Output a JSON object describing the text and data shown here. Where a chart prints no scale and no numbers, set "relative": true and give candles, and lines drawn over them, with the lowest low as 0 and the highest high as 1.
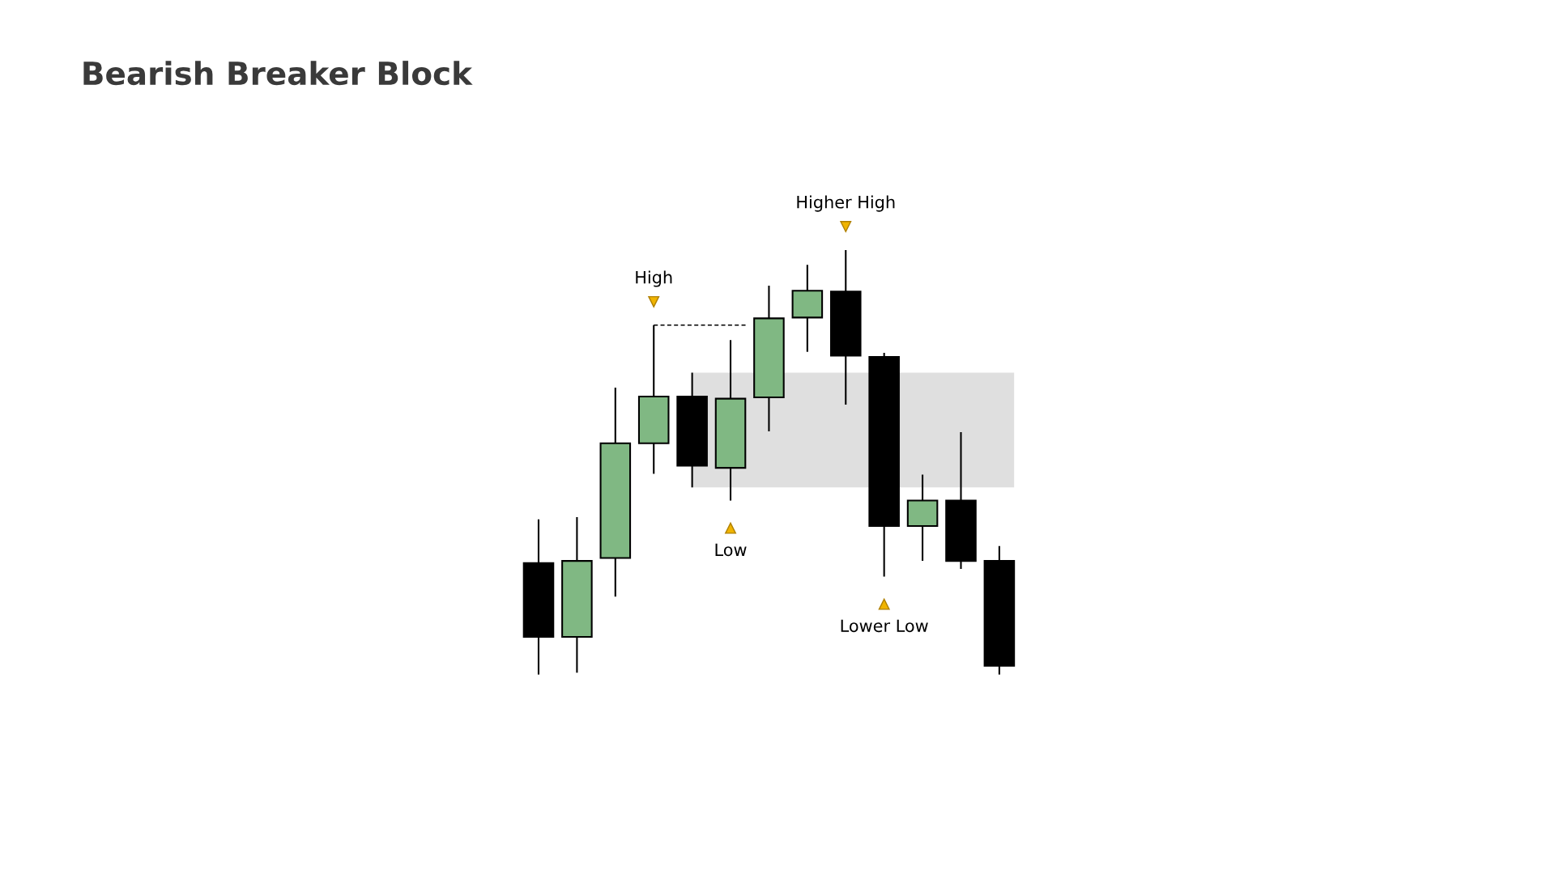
{
  "chart_data": {
    "type": "candlestick",
    "title": "Bearish Breaker Block",
    "relative": true,
    "categories": [
      null,
      null,
      null,
      null,
      null,
      null,
      null,
      null,
      null,
      null,
      null,
      null,
      null
    ],
    "ohlc": [
      [
        0.263,
        0.366,
        0.0,
        0.089
      ],
      [
        0.089,
        0.371,
        0.005,
        0.268
      ],
      [
        0.275,
        0.676,
        0.184,
        0.545
      ],
      [
        0.545,
        0.823,
        0.473,
        0.655
      ],
      [
        0.655,
        0.711,
        0.441,
        0.492
      ],
      [
        0.487,
        0.788,
        0.41,
        0.65
      ],
      [
        0.653,
        0.916,
        0.573,
        0.839
      ],
      [
        0.841,
        0.965,
        0.76,
        0.904
      ],
      [
        0.902,
        1.0,
        0.636,
        0.751
      ],
      [
        0.748,
        0.758,
        0.231,
        0.35
      ],
      [
        0.35,
        0.471,
        0.268,
        0.41
      ],
      [
        0.41,
        0.571,
        0.249,
        0.268
      ],
      [
        0.268,
        0.303,
        0.0,
        0.021
      ]
    ],
    "colors": [
      "#000000",
      "#80b883",
      "#80b883",
      "#80b883",
      "#000000",
      "#80b883",
      "#80b883",
      "#80b883",
      "#000000",
      "#000000",
      "#80b883",
      "#000000",
      "#000000"
    ],
    "annotations": [
      {
        "text": "High",
        "y": 0.823
      },
      {
        "text": "Low",
        "y": 0.41
      },
      {
        "text": "Higher High",
        "y": 1.0
      },
      {
        "text": "Lower Low",
        "y": 0.231
      }
    ],
    "ref_lines": [
      {
        "axis": "y",
        "value": 0.823,
        "label": null,
        "color": "#000000",
        "line_style": "dashed"
      }
    ],
    "bands": [
      {
        "axis": "y",
        "from": 0.441,
        "to": 0.711,
        "label": null,
        "color": "#d9d9d9"
      }
    ],
    "grid": false,
    "legend": false
  }
}
